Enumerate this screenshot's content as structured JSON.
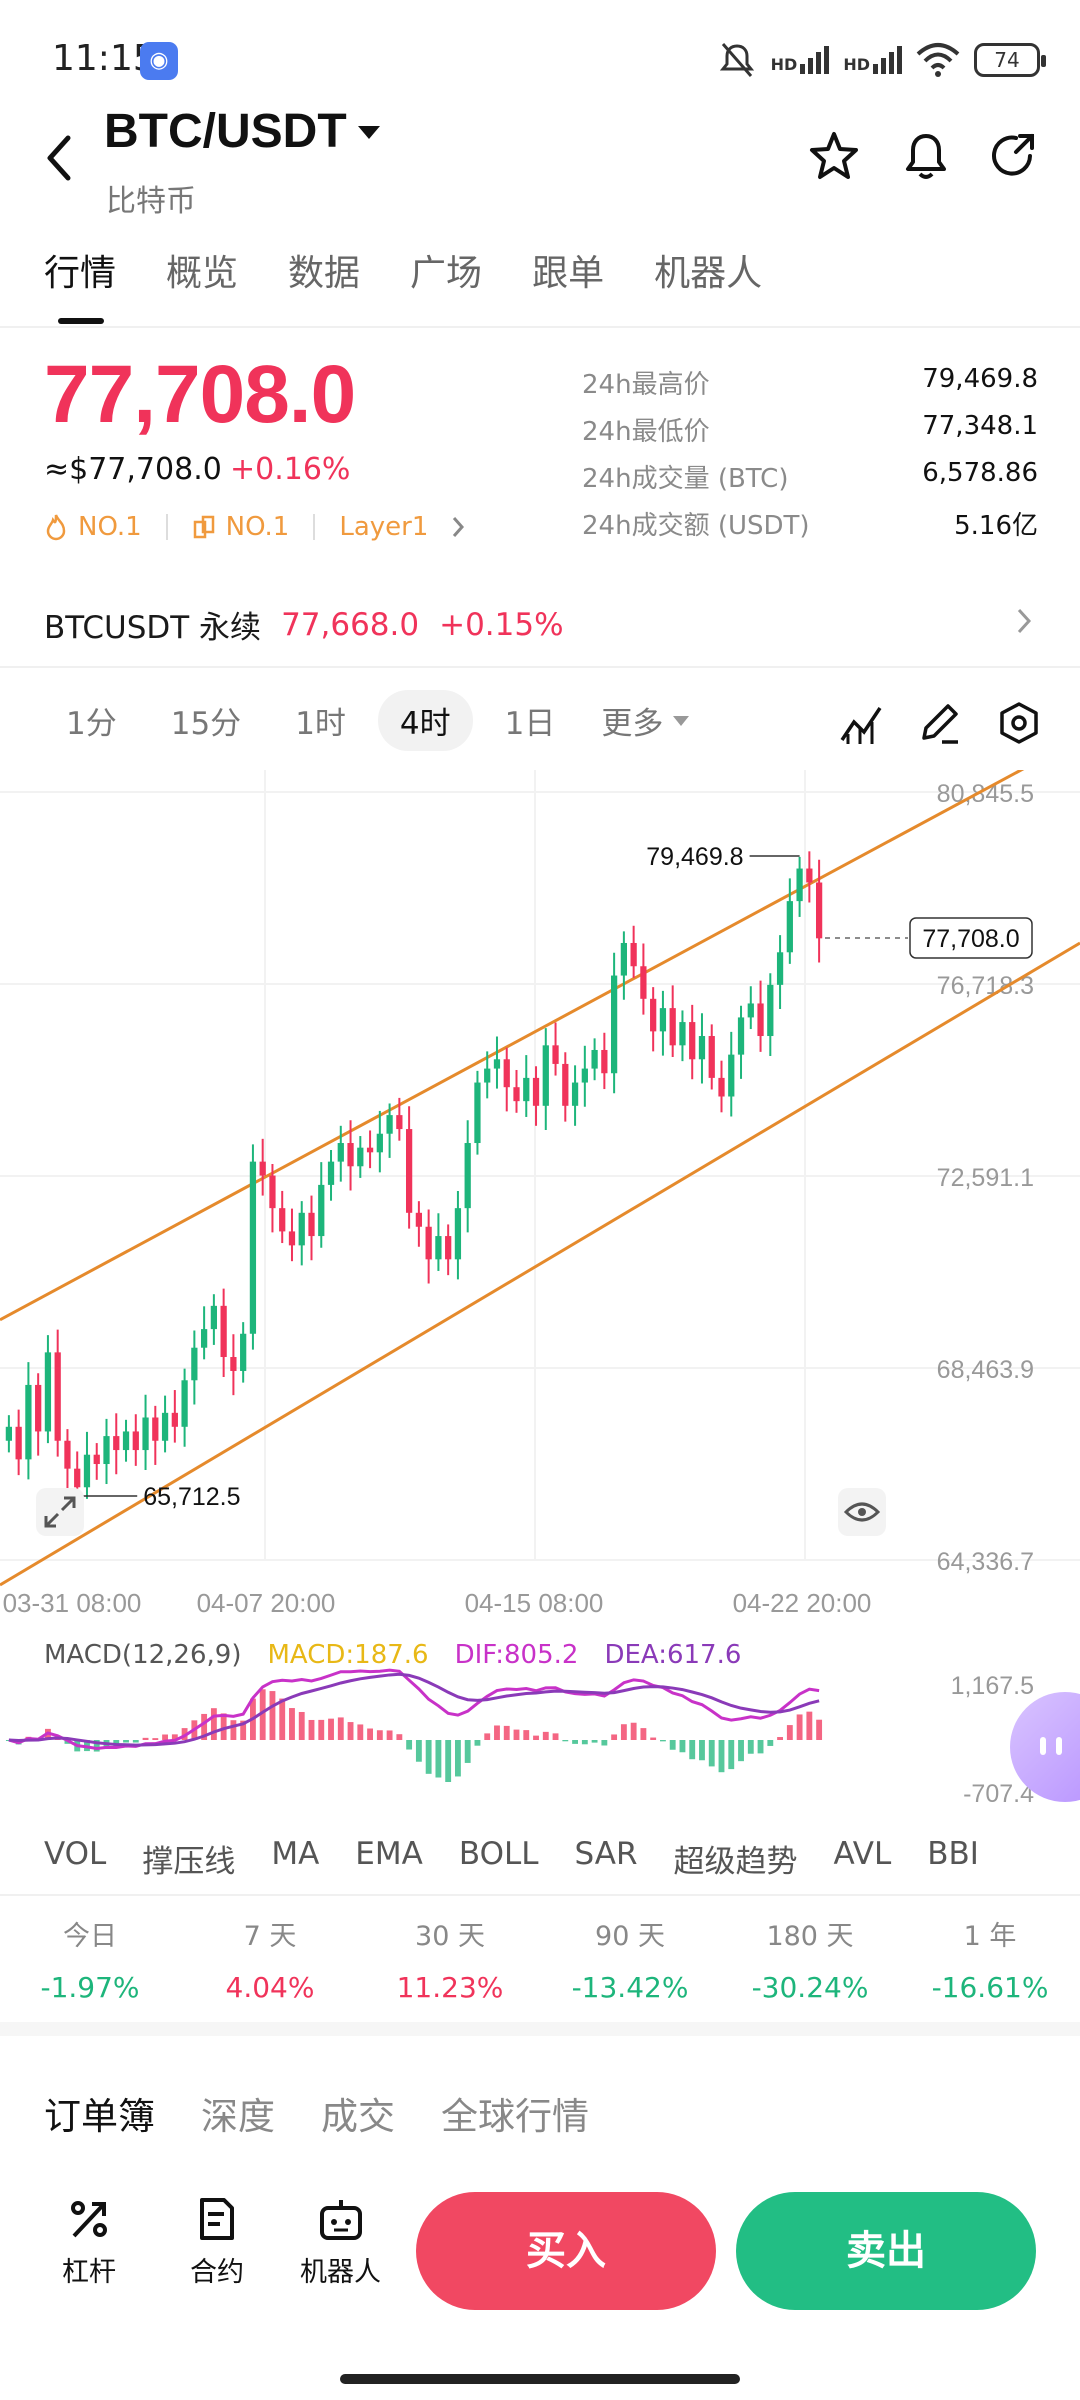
{
  "status_bar": {
    "time": "11:15",
    "battery": "74",
    "signal_1": "HD",
    "signal_2": "HD"
  },
  "header": {
    "title": "BTC/USDT",
    "subtitle": "比特币"
  },
  "tabs": [
    "行情",
    "概览",
    "数据",
    "广场",
    "跟单",
    "机器人"
  ],
  "price": {
    "last": "77,708.0",
    "usd": "≈$77,708.0",
    "change": "+0.16%",
    "tag1": "NO.1",
    "tag2": "NO.1",
    "tag3": "Layer1"
  },
  "stats": [
    {
      "label": "24h最高价",
      "value": "79,469.8"
    },
    {
      "label": "24h最低价",
      "value": "77,348.1"
    },
    {
      "label": "24h成交量 (BTC)",
      "value": "6,578.86"
    },
    {
      "label": "24h成交额 (USDT)",
      "value": "5.16亿"
    }
  ],
  "perpetual": {
    "label": "BTCUSDT 永续",
    "price": "77,668.0",
    "change": "+0.15%"
  },
  "intervals": [
    "1分",
    "15分",
    "1时",
    "4时",
    "1日"
  ],
  "interval_more": "更多",
  "colors": {
    "up": "#f0335a",
    "down": "#1db57b",
    "channel": "#e58a2c",
    "macd": "#e8b816",
    "dif": "#c832c8",
    "dea": "#8a3ab8"
  },
  "chart_data": {
    "type": "candlestick",
    "y_ticks": [
      "80,845.5",
      "76,718.3",
      "72,591.1",
      "68,463.9",
      "64,336.7"
    ],
    "x_ticks": [
      "03-31 08:00",
      "04-07 20:00",
      "04-15 08:00",
      "04-22 20:00"
    ],
    "ylim": [
      64336.7,
      80845.5
    ],
    "high_label": "79,469.8",
    "low_label": "65,712.5",
    "last_price_label": "77,708.0",
    "channel_upper": [
      [
        0,
        69500
      ],
      [
        100,
        82000
      ]
    ],
    "channel_lower": [
      [
        0,
        63800
      ],
      [
        100,
        77600
      ]
    ],
    "closes": [
      67200,
      66500,
      68100,
      67100,
      68800,
      66900,
      66300,
      65900,
      66600,
      66400,
      67000,
      66700,
      67100,
      66700,
      67400,
      66900,
      67500,
      67200,
      68200,
      68900,
      69300,
      69800,
      68700,
      68400,
      69200,
      72900,
      72600,
      71900,
      71400,
      71100,
      71800,
      71300,
      72400,
      72900,
      73300,
      72800,
      73200,
      73100,
      73500,
      73900,
      73600,
      71800,
      71500,
      70800,
      71300,
      70800,
      71900,
      73300,
      74600,
      74900,
      75100,
      74500,
      74200,
      74700,
      74100,
      75400,
      75000,
      74100,
      74600,
      74900,
      75300,
      74800,
      76900,
      77600,
      77100,
      76400,
      75700,
      76200,
      75400,
      75900,
      75100,
      75600,
      74700,
      74300,
      75200,
      76000,
      76300,
      75600,
      76700,
      77400,
      78500,
      79200,
      78900,
      77700
    ],
    "macd": {
      "label": "MACD(12,26,9)",
      "macd": "MACD:187.6",
      "dif": "DIF:805.2",
      "dea": "DEA:617.6",
      "y_top": "1,167.5",
      "y_bottom": "-707.4"
    }
  },
  "indicators": [
    "VOL",
    "撑压线",
    "MA",
    "EMA",
    "BOLL",
    "SAR",
    "超级趋势",
    "AVL",
    "BBI"
  ],
  "performance": [
    {
      "label": "今日",
      "value": "-1.97%",
      "dir": "down"
    },
    {
      "label": "7 天",
      "value": "4.04%",
      "dir": "up"
    },
    {
      "label": "30 天",
      "value": "11.23%",
      "dir": "up"
    },
    {
      "label": "90 天",
      "value": "-13.42%",
      "dir": "down"
    },
    {
      "label": "180 天",
      "value": "-30.24%",
      "dir": "down"
    },
    {
      "label": "1 年",
      "value": "-16.61%",
      "dir": "down"
    }
  ],
  "order_tabs": [
    "订单簿",
    "深度",
    "成交",
    "全球行情"
  ],
  "bottom": {
    "leverage": "杠杆",
    "contract": "合约",
    "robot": "机器人",
    "buy": "买入",
    "sell": "卖出"
  }
}
